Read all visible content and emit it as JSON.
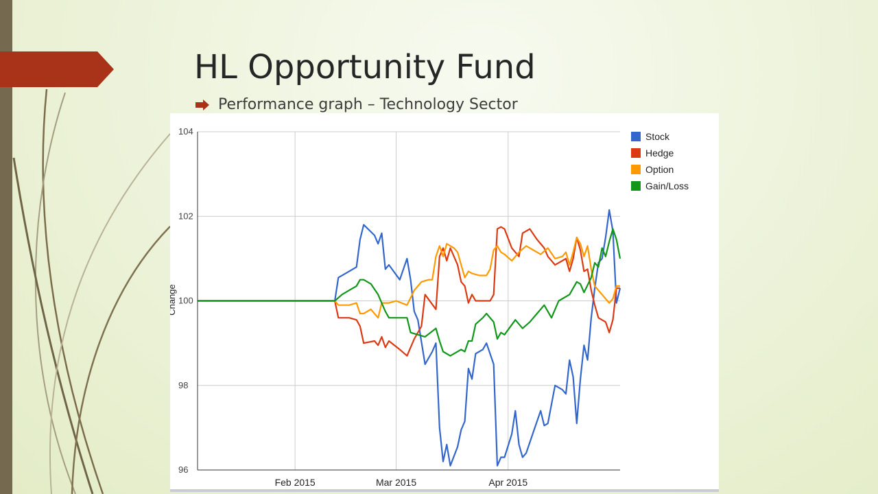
{
  "slide": {
    "title": "HL Opportunity Fund",
    "bullet": "Performance graph – Technology Sector"
  },
  "colors": {
    "tab": "#a83318",
    "bar": "#756a4f"
  },
  "icons": {
    "bullet": "arrow-bullet-icon"
  },
  "chart_data": {
    "type": "line",
    "ylabel": "Change",
    "ylim": [
      96,
      104
    ],
    "y_ticks": [
      "104",
      "102",
      "100",
      "98",
      "96"
    ],
    "x_ticks": [
      "Feb 2015",
      "Mar 2015",
      "Apr 2015"
    ],
    "x_tick_dates": [
      "2015-02-01",
      "2015-03-01",
      "2015-04-01"
    ],
    "x_range": [
      "2015-01-05",
      "2015-04-29"
    ],
    "grid": true,
    "legend_position": "top-right",
    "series": [
      {
        "name": "Stock",
        "color": "#3366cc",
        "values": [
          [
            "2015-01-05",
            100
          ],
          [
            "2015-02-12",
            100
          ],
          [
            "2015-02-13",
            100.55
          ],
          [
            "2015-02-16",
            100.7
          ],
          [
            "2015-02-18",
            100.8
          ],
          [
            "2015-02-19",
            101.45
          ],
          [
            "2015-02-20",
            101.8
          ],
          [
            "2015-02-23",
            101.55
          ],
          [
            "2015-02-24",
            101.35
          ],
          [
            "2015-02-25",
            101.6
          ],
          [
            "2015-02-26",
            100.75
          ],
          [
            "2015-02-27",
            100.85
          ],
          [
            "2015-03-02",
            100.5
          ],
          [
            "2015-03-04",
            101.0
          ],
          [
            "2015-03-05",
            100.5
          ],
          [
            "2015-03-06",
            99.75
          ],
          [
            "2015-03-07",
            99.55
          ],
          [
            "2015-03-09",
            98.5
          ],
          [
            "2015-03-11",
            98.8
          ],
          [
            "2015-03-12",
            99.0
          ],
          [
            "2015-03-13",
            97.0
          ],
          [
            "2015-03-14",
            96.2
          ],
          [
            "2015-03-15",
            96.6
          ],
          [
            "2015-03-16",
            96.1
          ],
          [
            "2015-03-18",
            96.55
          ],
          [
            "2015-03-19",
            96.95
          ],
          [
            "2015-03-20",
            97.15
          ],
          [
            "2015-03-21",
            98.4
          ],
          [
            "2015-03-22",
            98.15
          ],
          [
            "2015-03-23",
            98.75
          ],
          [
            "2015-03-25",
            98.85
          ],
          [
            "2015-03-26",
            99.0
          ],
          [
            "2015-03-28",
            98.5
          ],
          [
            "2015-03-29",
            96.1
          ],
          [
            "2015-03-30",
            96.3
          ],
          [
            "2015-03-31",
            96.3
          ],
          [
            "2015-04-02",
            96.85
          ],
          [
            "2015-04-03",
            97.4
          ],
          [
            "2015-04-04",
            96.6
          ],
          [
            "2015-04-05",
            96.3
          ],
          [
            "2015-04-06",
            96.4
          ],
          [
            "2015-04-08",
            96.9
          ],
          [
            "2015-04-10",
            97.4
          ],
          [
            "2015-04-11",
            97.05
          ],
          [
            "2015-04-12",
            97.1
          ],
          [
            "2015-04-14",
            98.0
          ],
          [
            "2015-04-16",
            97.9
          ],
          [
            "2015-04-17",
            97.8
          ],
          [
            "2015-04-18",
            98.6
          ],
          [
            "2015-04-19",
            98.2
          ],
          [
            "2015-04-20",
            97.1
          ],
          [
            "2015-04-21",
            98.15
          ],
          [
            "2015-04-22",
            98.95
          ],
          [
            "2015-04-23",
            98.6
          ],
          [
            "2015-04-24",
            99.6
          ],
          [
            "2015-04-25",
            100.3
          ],
          [
            "2015-04-26",
            100.9
          ],
          [
            "2015-04-27",
            101.0
          ],
          [
            "2015-04-28",
            101.5
          ],
          [
            "2015-04-29",
            102.15
          ],
          [
            "2015-04-30",
            101.65
          ],
          [
            "2015-05-01",
            99.95
          ],
          [
            "2015-05-02",
            100.3
          ]
        ]
      },
      {
        "name": "Hedge",
        "color": "#dc3912",
        "values": [
          [
            "2015-01-05",
            100
          ],
          [
            "2015-02-12",
            100
          ],
          [
            "2015-02-13",
            99.6
          ],
          [
            "2015-02-16",
            99.6
          ],
          [
            "2015-02-18",
            99.55
          ],
          [
            "2015-02-19",
            99.4
          ],
          [
            "2015-02-20",
            99.0
          ],
          [
            "2015-02-23",
            99.05
          ],
          [
            "2015-02-24",
            98.95
          ],
          [
            "2015-02-25",
            99.15
          ],
          [
            "2015-02-26",
            98.9
          ],
          [
            "2015-02-27",
            99.05
          ],
          [
            "2015-03-02",
            98.85
          ],
          [
            "2015-03-04",
            98.7
          ],
          [
            "2015-03-06",
            99.1
          ],
          [
            "2015-03-08",
            99.4
          ],
          [
            "2015-03-09",
            100.15
          ],
          [
            "2015-03-12",
            99.8
          ],
          [
            "2015-03-13",
            101.05
          ],
          [
            "2015-03-14",
            101.25
          ],
          [
            "2015-03-15",
            100.95
          ],
          [
            "2015-03-16",
            101.25
          ],
          [
            "2015-03-18",
            100.85
          ],
          [
            "2015-03-19",
            100.45
          ],
          [
            "2015-03-20",
            100.35
          ],
          [
            "2015-03-21",
            99.95
          ],
          [
            "2015-03-22",
            100.15
          ],
          [
            "2015-03-23",
            100.0
          ],
          [
            "2015-03-25",
            100.0
          ],
          [
            "2015-03-27",
            100.0
          ],
          [
            "2015-03-28",
            100.15
          ],
          [
            "2015-03-29",
            101.7
          ],
          [
            "2015-03-30",
            101.75
          ],
          [
            "2015-03-31",
            101.7
          ],
          [
            "2015-04-02",
            101.25
          ],
          [
            "2015-04-04",
            101.05
          ],
          [
            "2015-04-05",
            101.6
          ],
          [
            "2015-04-07",
            101.7
          ],
          [
            "2015-04-09",
            101.45
          ],
          [
            "2015-04-11",
            101.25
          ],
          [
            "2015-04-12",
            101.05
          ],
          [
            "2015-04-14",
            100.85
          ],
          [
            "2015-04-16",
            100.95
          ],
          [
            "2015-04-17",
            101.0
          ],
          [
            "2015-04-18",
            100.7
          ],
          [
            "2015-04-19",
            101.0
          ],
          [
            "2015-04-20",
            101.5
          ],
          [
            "2015-04-21",
            101.2
          ],
          [
            "2015-04-22",
            100.7
          ],
          [
            "2015-04-23",
            100.75
          ],
          [
            "2015-04-24",
            100.25
          ],
          [
            "2015-04-25",
            99.9
          ],
          [
            "2015-04-26",
            99.6
          ],
          [
            "2015-04-28",
            99.5
          ],
          [
            "2015-04-29",
            99.25
          ],
          [
            "2015-04-30",
            99.55
          ],
          [
            "2015-05-01",
            100.3
          ],
          [
            "2015-05-02",
            100.3
          ]
        ]
      },
      {
        "name": "Option",
        "color": "#ff9900",
        "values": [
          [
            "2015-01-05",
            100
          ],
          [
            "2015-02-12",
            100
          ],
          [
            "2015-02-13",
            99.9
          ],
          [
            "2015-02-16",
            99.9
          ],
          [
            "2015-02-18",
            99.95
          ],
          [
            "2015-02-19",
            99.7
          ],
          [
            "2015-02-20",
            99.7
          ],
          [
            "2015-02-22",
            99.8
          ],
          [
            "2015-02-24",
            99.6
          ],
          [
            "2015-02-25",
            99.95
          ],
          [
            "2015-02-27",
            99.95
          ],
          [
            "2015-03-01",
            100.0
          ],
          [
            "2015-03-04",
            99.9
          ],
          [
            "2015-03-06",
            100.25
          ],
          [
            "2015-03-08",
            100.45
          ],
          [
            "2015-03-10",
            100.5
          ],
          [
            "2015-03-11",
            100.5
          ],
          [
            "2015-03-12",
            101.05
          ],
          [
            "2015-03-13",
            101.3
          ],
          [
            "2015-03-14",
            101.05
          ],
          [
            "2015-03-15",
            101.35
          ],
          [
            "2015-03-17",
            101.25
          ],
          [
            "2015-03-18",
            101.15
          ],
          [
            "2015-03-19",
            100.85
          ],
          [
            "2015-03-20",
            100.55
          ],
          [
            "2015-03-21",
            100.7
          ],
          [
            "2015-03-22",
            100.65
          ],
          [
            "2015-03-24",
            100.6
          ],
          [
            "2015-03-26",
            100.6
          ],
          [
            "2015-03-27",
            100.75
          ],
          [
            "2015-03-28",
            101.2
          ],
          [
            "2015-03-29",
            101.3
          ],
          [
            "2015-03-30",
            101.15
          ],
          [
            "2015-03-31",
            101.1
          ],
          [
            "2015-04-02",
            100.95
          ],
          [
            "2015-04-04",
            101.15
          ],
          [
            "2015-04-06",
            101.3
          ],
          [
            "2015-04-08",
            101.2
          ],
          [
            "2015-04-10",
            101.1
          ],
          [
            "2015-04-12",
            101.25
          ],
          [
            "2015-04-14",
            101.0
          ],
          [
            "2015-04-16",
            101.05
          ],
          [
            "2015-04-17",
            101.15
          ],
          [
            "2015-04-18",
            100.85
          ],
          [
            "2015-04-19",
            101.15
          ],
          [
            "2015-04-20",
            101.5
          ],
          [
            "2015-04-21",
            101.35
          ],
          [
            "2015-04-22",
            101.05
          ],
          [
            "2015-04-23",
            101.3
          ],
          [
            "2015-04-24",
            100.75
          ],
          [
            "2015-04-25",
            100.35
          ],
          [
            "2015-04-26",
            100.25
          ],
          [
            "2015-04-27",
            100.15
          ],
          [
            "2015-04-28",
            100.05
          ],
          [
            "2015-04-29",
            99.95
          ],
          [
            "2015-04-30",
            100.05
          ],
          [
            "2015-05-01",
            100.35
          ],
          [
            "2015-05-02",
            100.35
          ]
        ]
      },
      {
        "name": "Gain/Loss",
        "color": "#109618",
        "values": [
          [
            "2015-01-05",
            100
          ],
          [
            "2015-02-12",
            100
          ],
          [
            "2015-02-14",
            100.15
          ],
          [
            "2015-02-16",
            100.25
          ],
          [
            "2015-02-18",
            100.35
          ],
          [
            "2015-02-19",
            100.5
          ],
          [
            "2015-02-20",
            100.5
          ],
          [
            "2015-02-22",
            100.4
          ],
          [
            "2015-02-24",
            100.15
          ],
          [
            "2015-02-26",
            99.75
          ],
          [
            "2015-02-27",
            99.6
          ],
          [
            "2015-03-01",
            99.6
          ],
          [
            "2015-03-04",
            99.6
          ],
          [
            "2015-03-05",
            99.25
          ],
          [
            "2015-03-07",
            99.2
          ],
          [
            "2015-03-09",
            99.15
          ],
          [
            "2015-03-12",
            99.35
          ],
          [
            "2015-03-13",
            99.05
          ],
          [
            "2015-03-14",
            98.8
          ],
          [
            "2015-03-16",
            98.7
          ],
          [
            "2015-03-19",
            98.85
          ],
          [
            "2015-03-20",
            98.8
          ],
          [
            "2015-03-21",
            99.05
          ],
          [
            "2015-03-22",
            99.05
          ],
          [
            "2015-03-23",
            99.45
          ],
          [
            "2015-03-25",
            99.6
          ],
          [
            "2015-03-26",
            99.7
          ],
          [
            "2015-03-28",
            99.5
          ],
          [
            "2015-03-29",
            99.1
          ],
          [
            "2015-03-30",
            99.25
          ],
          [
            "2015-03-31",
            99.2
          ],
          [
            "2015-04-03",
            99.55
          ],
          [
            "2015-04-05",
            99.35
          ],
          [
            "2015-04-07",
            99.5
          ],
          [
            "2015-04-09",
            99.7
          ],
          [
            "2015-04-11",
            99.9
          ],
          [
            "2015-04-13",
            99.6
          ],
          [
            "2015-04-15",
            100.0
          ],
          [
            "2015-04-18",
            100.15
          ],
          [
            "2015-04-20",
            100.45
          ],
          [
            "2015-04-21",
            100.4
          ],
          [
            "2015-04-22",
            100.2
          ],
          [
            "2015-04-24",
            100.55
          ],
          [
            "2015-04-25",
            100.9
          ],
          [
            "2015-04-26",
            100.8
          ],
          [
            "2015-04-27",
            101.25
          ],
          [
            "2015-04-28",
            101.05
          ],
          [
            "2015-04-29",
            101.4
          ],
          [
            "2015-04-30",
            101.7
          ],
          [
            "2015-05-01",
            101.45
          ],
          [
            "2015-05-02",
            101.0
          ]
        ]
      }
    ]
  }
}
